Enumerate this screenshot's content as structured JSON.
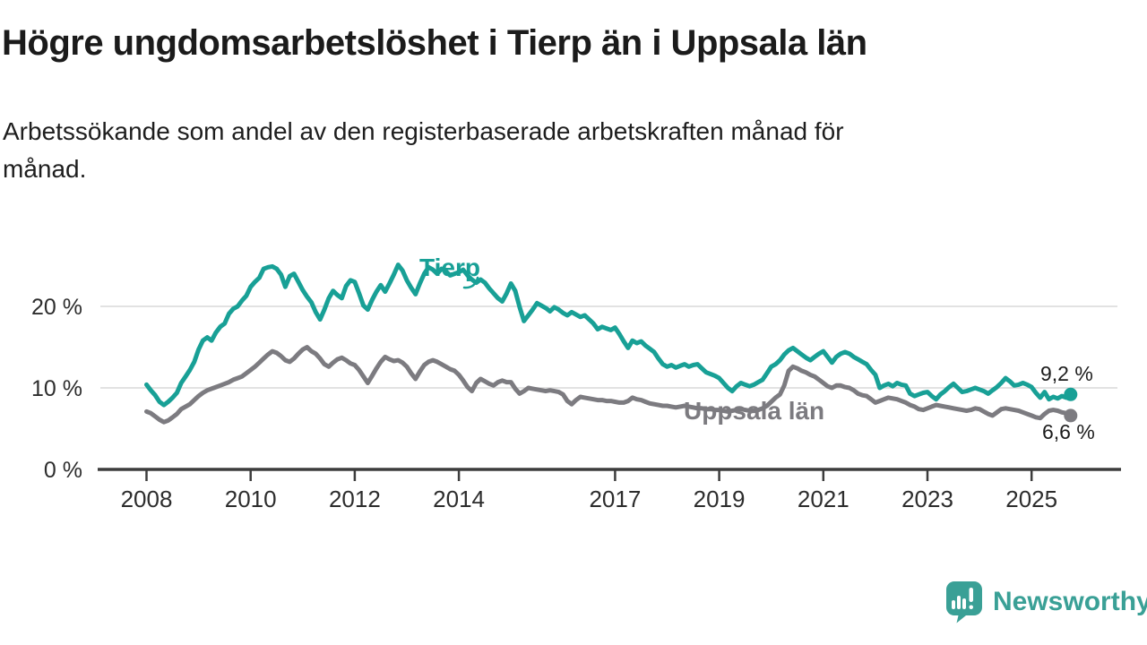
{
  "header": {
    "title": "Högre ungdomsarbetslöshet i Tierp än i Uppsala län",
    "subtitle_lines": [
      "Arbetssökande som andel av den registerbaserade arbetskraften månad för",
      "månad."
    ]
  },
  "chart_data": {
    "type": "line",
    "frequency": "monthly",
    "x_start": "2008-01",
    "x_end": "2025-10",
    "grid": "horizontal",
    "legend_position": "inline-labels",
    "ylim": [
      0,
      26
    ],
    "style": {
      "grid_color": "#d8d8d8",
      "axis_color": "#3d3d3d",
      "tick_label_color": "#2d2d2d",
      "value_label_color": "#1c1c1c"
    },
    "y_axis": {
      "ticks": [
        {
          "value": 0,
          "label": "0 %"
        },
        {
          "value": 10,
          "label": "10 %"
        },
        {
          "value": 20,
          "label": "20 %"
        }
      ],
      "gridline_values": [
        10,
        20
      ]
    },
    "x_axis": {
      "ticks": [
        {
          "year": 2008,
          "label": "2008"
        },
        {
          "year": 2010,
          "label": "2010"
        },
        {
          "year": 2012,
          "label": "2012"
        },
        {
          "year": 2014,
          "label": "2014"
        },
        {
          "year": 2017,
          "label": "2017"
        },
        {
          "year": 2019,
          "label": "2019"
        },
        {
          "year": 2021,
          "label": "2021"
        },
        {
          "year": 2023,
          "label": "2023"
        },
        {
          "year": 2025,
          "label": "2025"
        }
      ]
    },
    "series": [
      {
        "name": "Tierp",
        "color": "#18a096",
        "end_label": "9,2 %",
        "end_value": 9.2,
        "values": [
          10.4,
          9.7,
          9.1,
          8.3,
          7.9,
          8.3,
          8.8,
          9.4,
          10.6,
          11.4,
          12.2,
          13.2,
          14.7,
          15.8,
          16.2,
          15.8,
          16.8,
          17.5,
          17.9,
          19.1,
          19.7,
          20.0,
          20.7,
          21.3,
          22.4,
          23.0,
          23.5,
          24.6,
          24.8,
          24.9,
          24.6,
          23.9,
          22.4,
          23.7,
          24.0,
          23.0,
          22.0,
          21.2,
          20.5,
          19.3,
          18.4,
          19.6,
          21.0,
          21.9,
          21.4,
          21.0,
          22.5,
          23.2,
          23.0,
          21.6,
          20.1,
          19.6,
          20.8,
          21.8,
          22.6,
          21.8,
          22.8,
          23.9,
          25.1,
          24.4,
          23.2,
          22.3,
          21.5,
          22.8,
          24.0,
          24.8,
          24.5,
          24.0,
          24.6,
          24.3,
          23.8,
          24.0,
          24.2,
          24.5,
          23.8,
          23.3,
          22.9,
          23.3,
          22.9,
          22.2,
          21.6,
          21.0,
          20.6,
          21.6,
          22.8,
          21.9,
          19.9,
          18.2,
          18.9,
          19.6,
          20.4,
          20.1,
          19.8,
          19.4,
          19.9,
          19.6,
          19.2,
          18.9,
          19.3,
          19.0,
          18.7,
          18.9,
          18.4,
          17.9,
          17.2,
          17.5,
          17.3,
          17.1,
          17.4,
          16.6,
          15.7,
          14.9,
          15.8,
          15.5,
          15.7,
          15.2,
          14.8,
          14.4,
          13.6,
          12.9,
          12.6,
          12.8,
          12.5,
          12.7,
          12.9,
          12.6,
          12.8,
          12.9,
          12.4,
          11.9,
          11.7,
          11.5,
          11.2,
          10.6,
          10.0,
          9.6,
          10.2,
          10.6,
          10.4,
          10.2,
          10.4,
          10.7,
          11.0,
          11.8,
          12.6,
          12.9,
          13.4,
          14.1,
          14.6,
          14.9,
          14.5,
          14.1,
          13.7,
          13.4,
          13.8,
          14.2,
          14.5,
          13.8,
          13.1,
          13.8,
          14.2,
          14.4,
          14.2,
          13.8,
          13.5,
          13.2,
          12.9,
          12.2,
          11.6,
          10.0,
          10.3,
          10.5,
          10.2,
          10.6,
          10.4,
          10.3,
          9.3,
          9.0,
          9.2,
          9.4,
          9.5,
          9.0,
          8.6,
          9.2,
          9.6,
          10.1,
          10.5,
          10.0,
          9.5,
          9.6,
          9.8,
          10.0,
          9.8,
          9.6,
          9.3,
          9.7,
          10.1,
          10.6,
          11.2,
          10.8,
          10.3,
          10.4,
          10.6,
          10.4,
          10.1,
          9.4,
          8.8,
          9.5,
          8.6,
          8.9,
          8.7,
          9.0,
          8.8,
          9.2
        ]
      },
      {
        "name": "Uppsala län",
        "color": "#7c7b80",
        "end_label": "6,6 %",
        "end_value": 6.6,
        "values": [
          7.1,
          6.9,
          6.5,
          6.1,
          5.8,
          6.0,
          6.4,
          6.8,
          7.4,
          7.7,
          8.0,
          8.5,
          9.0,
          9.4,
          9.7,
          9.9,
          10.1,
          10.3,
          10.5,
          10.7,
          11.0,
          11.2,
          11.4,
          11.8,
          12.2,
          12.6,
          13.1,
          13.6,
          14.1,
          14.5,
          14.3,
          13.9,
          13.4,
          13.2,
          13.6,
          14.2,
          14.7,
          15.0,
          14.5,
          14.2,
          13.6,
          12.9,
          12.6,
          13.1,
          13.5,
          13.7,
          13.4,
          13.0,
          12.8,
          12.2,
          11.4,
          10.6,
          11.5,
          12.4,
          13.2,
          13.8,
          13.5,
          13.3,
          13.4,
          13.1,
          12.6,
          11.8,
          11.1,
          12.0,
          12.8,
          13.2,
          13.4,
          13.2,
          12.9,
          12.6,
          12.3,
          12.1,
          11.6,
          10.9,
          10.1,
          9.6,
          10.6,
          11.1,
          10.8,
          10.5,
          10.3,
          10.7,
          10.9,
          10.7,
          10.7,
          9.9,
          9.3,
          9.6,
          10.0,
          9.9,
          9.8,
          9.7,
          9.6,
          9.7,
          9.6,
          9.5,
          9.2,
          8.4,
          8.0,
          8.5,
          8.9,
          8.8,
          8.7,
          8.6,
          8.5,
          8.5,
          8.4,
          8.4,
          8.3,
          8.2,
          8.2,
          8.4,
          8.8,
          8.6,
          8.5,
          8.3,
          8.1,
          8.0,
          7.9,
          7.8,
          7.8,
          7.7,
          7.6,
          7.7,
          7.8,
          7.7,
          7.6,
          7.5,
          7.5,
          7.4,
          7.4,
          7.3,
          7.3,
          7.2,
          7.1,
          7.2,
          7.3,
          7.4,
          7.3,
          7.2,
          7.2,
          7.3,
          7.5,
          7.8,
          8.3,
          8.8,
          9.2,
          10.3,
          12.1,
          12.6,
          12.4,
          12.1,
          11.9,
          11.6,
          11.4,
          11.0,
          10.6,
          10.2,
          10.0,
          10.3,
          10.3,
          10.1,
          10.0,
          9.7,
          9.3,
          9.1,
          9.0,
          8.6,
          8.2,
          8.4,
          8.6,
          8.8,
          8.7,
          8.6,
          8.4,
          8.2,
          7.9,
          7.7,
          7.4,
          7.3,
          7.5,
          7.7,
          7.9,
          7.8,
          7.7,
          7.6,
          7.5,
          7.4,
          7.3,
          7.2,
          7.3,
          7.5,
          7.4,
          7.1,
          6.8,
          6.6,
          7.0,
          7.4,
          7.5,
          7.4,
          7.3,
          7.2,
          7.0,
          6.8,
          6.6,
          6.4,
          6.3,
          6.8,
          7.2,
          7.3,
          7.2,
          7.0,
          6.9,
          6.6
        ]
      }
    ]
  },
  "footer": {
    "brand": "Newsworthy",
    "brand_color": "#3aa096",
    "logo_icon": "bar-chart-speech-bubble"
  }
}
